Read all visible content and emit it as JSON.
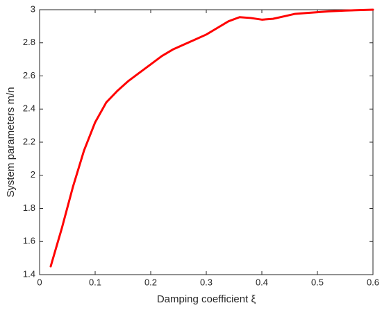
{
  "chart_data": {
    "type": "line",
    "x_label": "Damping coefficient ξ",
    "y_label": "System parameters m/n",
    "x": [
      0.02,
      0.04,
      0.06,
      0.08,
      0.1,
      0.12,
      0.14,
      0.16,
      0.18,
      0.2,
      0.22,
      0.24,
      0.26,
      0.28,
      0.3,
      0.32,
      0.34,
      0.36,
      0.38,
      0.4,
      0.42,
      0.44,
      0.46,
      0.48,
      0.5,
      0.52,
      0.55,
      0.6
    ],
    "series": [
      {
        "color": "#ff0000",
        "values": [
          1.45,
          1.68,
          1.93,
          2.15,
          2.32,
          2.44,
          2.51,
          2.57,
          2.62,
          2.67,
          2.72,
          2.76,
          2.79,
          2.82,
          2.85,
          2.89,
          2.93,
          2.955,
          2.95,
          2.94,
          2.945,
          2.96,
          2.975,
          2.98,
          2.985,
          2.99,
          2.995,
          3.0
        ]
      }
    ],
    "xlim": [
      0,
      0.6
    ],
    "xticks": [
      0,
      0.1,
      0.2,
      0.3,
      0.4,
      0.5,
      0.6
    ],
    "ylim": [
      1.4,
      3
    ],
    "yticks": [
      1.4,
      1.6,
      1.8,
      2,
      2.2,
      2.4,
      2.6,
      2.8,
      3
    ],
    "grid": false
  }
}
